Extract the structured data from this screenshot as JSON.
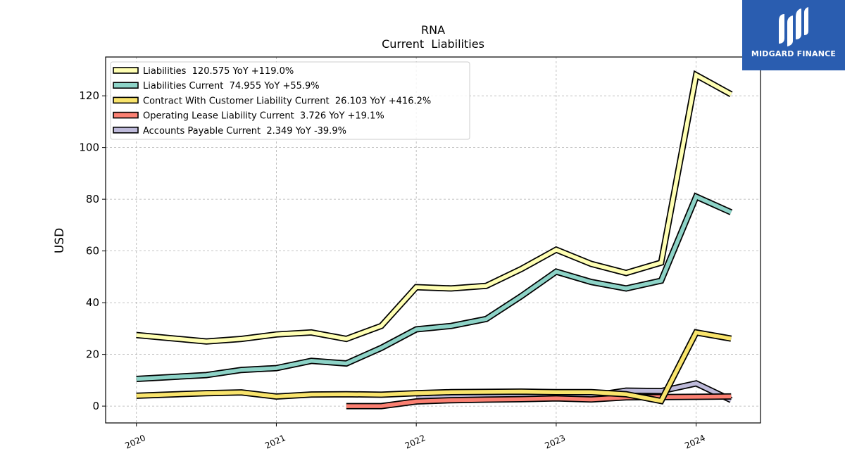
{
  "logo": {
    "text": "MIDGARD FINANCE",
    "icon": "midgard-logo-icon"
  },
  "chart_data": {
    "type": "line",
    "title": "RNA",
    "subtitle": "Current  Liabilities",
    "ylabel": "USD",
    "xlabel": "",
    "ylim": [
      -6.5,
      135
    ],
    "xlim": [
      2019.78,
      2024.46
    ],
    "yticks": [
      0,
      20,
      40,
      60,
      80,
      100,
      120
    ],
    "xticks": [
      {
        "value": 2020,
        "label": "2020"
      },
      {
        "value": 2021,
        "label": "2021"
      },
      {
        "value": 2022,
        "label": "2022"
      },
      {
        "value": 2023,
        "label": "2023"
      },
      {
        "value": 2024,
        "label": "2024"
      }
    ],
    "grid": true,
    "legend_position": "top-left",
    "series": [
      {
        "name": "Liabilities",
        "legend": "Liabilities  120.575 YoY +119.0%",
        "color": "#ffffb3",
        "points": [
          [
            2020.0,
            27.5
          ],
          [
            2020.5,
            25.0
          ],
          [
            2020.75,
            26.0
          ],
          [
            2021.0,
            27.7
          ],
          [
            2021.25,
            28.5
          ],
          [
            2021.5,
            26.0
          ],
          [
            2021.75,
            31.0
          ],
          [
            2022.0,
            46.0
          ],
          [
            2022.25,
            45.5
          ],
          [
            2022.5,
            46.5
          ],
          [
            2022.75,
            53.0
          ],
          [
            2023.0,
            60.5
          ],
          [
            2023.25,
            55.0
          ],
          [
            2023.5,
            51.5
          ],
          [
            2023.75,
            55.5
          ],
          [
            2024.0,
            128.0
          ],
          [
            2024.25,
            120.575
          ]
        ]
      },
      {
        "name": "Liabilities Current",
        "legend": "Liabilities Current  74.955 YoY +55.9%",
        "color": "#8dd3c7",
        "points": [
          [
            2020.0,
            10.5
          ],
          [
            2020.5,
            12.0
          ],
          [
            2020.75,
            14.0
          ],
          [
            2021.0,
            14.7
          ],
          [
            2021.25,
            17.5
          ],
          [
            2021.5,
            16.5
          ],
          [
            2021.75,
            22.5
          ],
          [
            2022.0,
            29.7
          ],
          [
            2022.25,
            31.0
          ],
          [
            2022.5,
            33.7
          ],
          [
            2022.75,
            42.5
          ],
          [
            2023.0,
            52.0
          ],
          [
            2023.25,
            48.0
          ],
          [
            2023.5,
            45.5
          ],
          [
            2023.75,
            48.5
          ],
          [
            2024.0,
            81.0
          ],
          [
            2024.25,
            74.955
          ]
        ]
      },
      {
        "name": "Contract With Customer Liability Current",
        "legend": "Contract With Customer Liability Current  26.103 YoY +416.2%",
        "color": "#f9e46c",
        "points": [
          [
            2020.0,
            4.0
          ],
          [
            2020.5,
            5.0
          ],
          [
            2020.75,
            5.3
          ],
          [
            2021.0,
            3.7
          ],
          [
            2021.25,
            4.5
          ],
          [
            2021.5,
            4.6
          ],
          [
            2021.75,
            4.4
          ],
          [
            2022.0,
            5.0
          ],
          [
            2022.25,
            5.4
          ],
          [
            2022.5,
            5.5
          ],
          [
            2022.75,
            5.6
          ],
          [
            2023.0,
            5.4
          ],
          [
            2023.25,
            5.4
          ],
          [
            2023.5,
            4.6
          ],
          [
            2023.75,
            2.0
          ],
          [
            2024.0,
            28.5
          ],
          [
            2024.25,
            26.103
          ]
        ]
      },
      {
        "name": "Operating Lease Liability Current",
        "legend": "Operating Lease Liability Current  3.726 YoY +19.1%",
        "color": "#fb8072",
        "points": [
          [
            2021.5,
            0.0
          ],
          [
            2021.75,
            0.0
          ],
          [
            2022.0,
            1.8
          ],
          [
            2022.25,
            2.3
          ],
          [
            2022.5,
            2.5
          ],
          [
            2022.75,
            2.7
          ],
          [
            2023.0,
            3.0
          ],
          [
            2023.25,
            2.6
          ],
          [
            2023.5,
            3.4
          ],
          [
            2023.75,
            3.5
          ],
          [
            2024.0,
            3.6
          ],
          [
            2024.25,
            3.726
          ]
        ]
      },
      {
        "name": "Accounts Payable Current",
        "legend": "Accounts Payable Current  2.349 YoY -39.9%",
        "color": "#bebada",
        "points": [
          [
            2022.0,
            3.0
          ],
          [
            2022.25,
            3.5
          ],
          [
            2022.5,
            4.0
          ],
          [
            2022.75,
            4.5
          ],
          [
            2023.0,
            5.0
          ],
          [
            2023.25,
            4.0
          ],
          [
            2023.5,
            6.0
          ],
          [
            2023.75,
            5.8
          ],
          [
            2024.0,
            8.8
          ],
          [
            2024.25,
            2.349
          ]
        ]
      }
    ]
  }
}
